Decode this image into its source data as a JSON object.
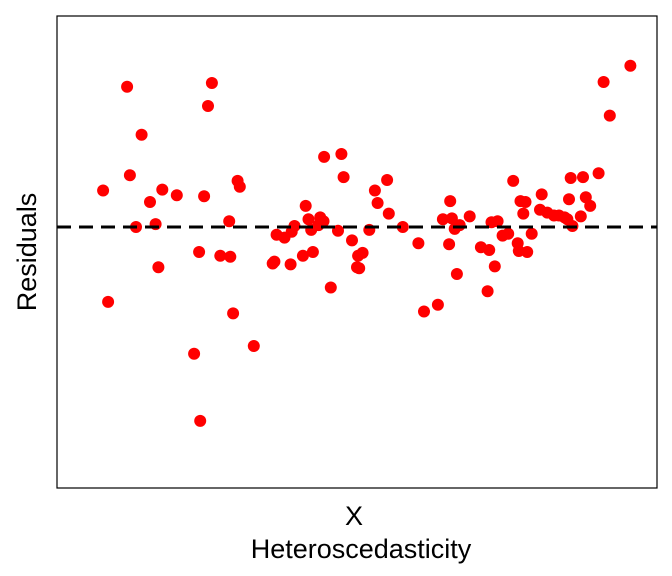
{
  "colors": {
    "points": "#ff0000",
    "reference_line": "#000000",
    "frame": "#000000",
    "background": "#ffffff"
  },
  "chart_data": {
    "type": "scatter",
    "xlabel": "X",
    "ylabel": "Residuals",
    "caption": "Heteroscedasticity",
    "xlim": [
      0,
      100
    ],
    "ylim": [
      -100,
      100
    ],
    "x_ticks_shown": false,
    "y_ticks_shown": false,
    "grid": false,
    "reference_line": {
      "y": 0,
      "style": "dashed"
    },
    "series": [
      {
        "x": [
          4.5,
          5.4,
          8.8,
          9.3,
          10.4,
          11.4,
          12.9,
          13.9,
          14.4,
          15.1,
          17.7,
          20.8,
          21.7,
          21.9,
          22.6,
          23.3,
          24.0,
          25.5,
          27.1,
          27.3,
          27.8,
          28.6,
          29.0,
          31.5,
          34.9,
          35.2,
          35.6,
          37.0,
          38.1,
          38.3,
          38.8,
          40.3,
          40.8,
          41.3,
          41.8,
          42.1,
          43.1,
          43.4,
          44.0,
          44.1,
          45.3,
          46.6,
          47.2,
          47.6,
          49.1,
          50.0,
          50.2,
          50.4,
          51.0,
          52.2,
          53.2,
          53.7,
          55.4,
          55.7,
          58.2,
          61.0,
          62.0,
          64.5,
          65.4,
          66.5,
          66.7,
          67.0,
          67.5,
          67.9,
          68.4,
          70.2,
          72.2,
          73.4,
          73.7,
          74.1,
          74.7,
          75.2,
          76.1,
          77.1,
          78.0,
          78.8,
          79.0,
          79.3,
          79.8,
          80.2,
          80.5,
          81.3,
          82.8,
          83.1,
          84.1,
          85.3,
          86.2,
          87.2,
          87.7,
          88.0,
          88.3,
          88.6,
          90.1,
          90.5,
          91.0,
          91.8,
          93.3,
          94.2,
          95.3,
          99.0
        ],
        "y": [
          19.0,
          -39.0,
          73.0,
          27.0,
          0.0,
          48.0,
          13.0,
          1.5,
          -21.0,
          19.5,
          16.5,
          -66.0,
          -13.0,
          -101.0,
          16.0,
          63.0,
          75.0,
          -15.0,
          3.0,
          -15.5,
          -45.0,
          24.0,
          21.0,
          -62.0,
          -19.0,
          -18.0,
          -4.0,
          -5.5,
          -19.5,
          -2.5,
          0.5,
          -15.0,
          11.0,
          4.0,
          -1.5,
          -13.0,
          1.0,
          5.0,
          3.0,
          36.5,
          -31.5,
          -2.0,
          38.0,
          26.0,
          -7.0,
          -21.0,
          -15.0,
          -21.5,
          -13.5,
          -1.5,
          19.0,
          12.5,
          24.5,
          7.0,
          0.0,
          -8.5,
          -44.0,
          -40.5,
          4.0,
          -9.0,
          13.5,
          4.5,
          -1.0,
          -24.5,
          1.0,
          5.5,
          -10.5,
          -33.5,
          -12.0,
          2.5,
          -20.5,
          3.0,
          -4.5,
          -3.5,
          24.0,
          -8.5,
          -12.5,
          13.5,
          7.0,
          13.0,
          -13.0,
          -3.5,
          9.0,
          17.0,
          7.5,
          6.0,
          6.0,
          5.0,
          4.0,
          14.5,
          25.5,
          0.5,
          5.5,
          26.0,
          15.5,
          11.0,
          28.0,
          75.5,
          58.0,
          84.0
        ]
      }
    ]
  }
}
